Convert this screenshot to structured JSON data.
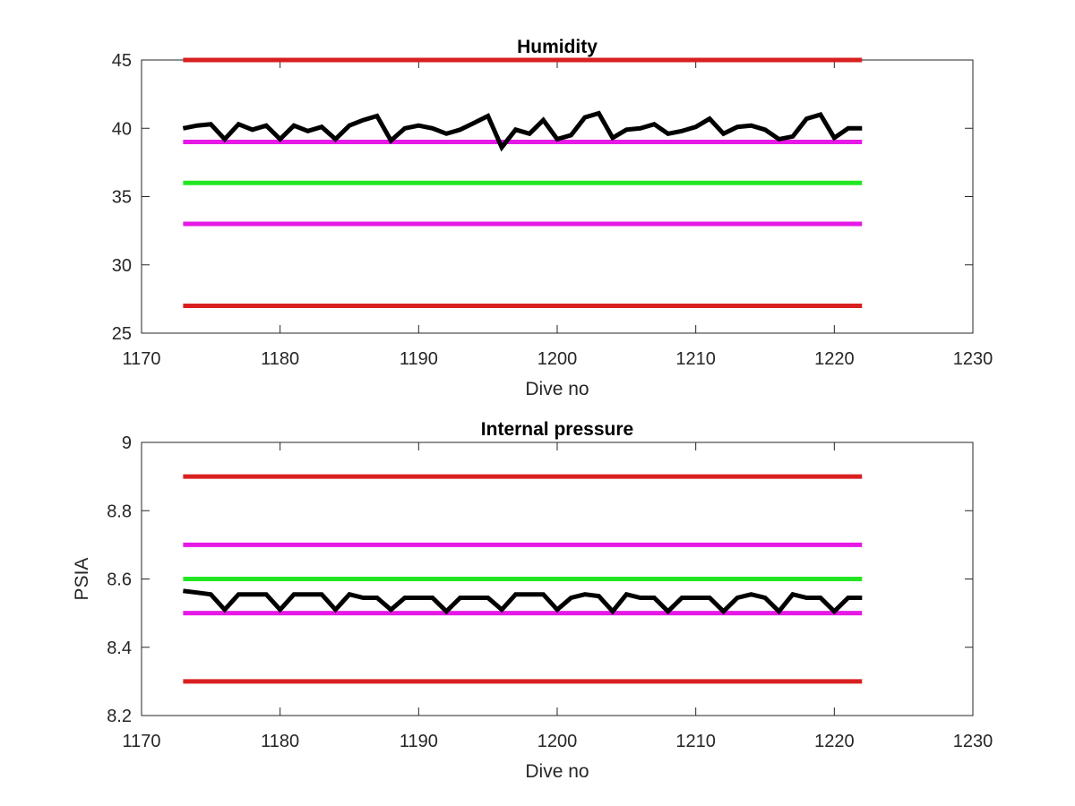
{
  "chart_data": [
    {
      "type": "line",
      "title": "Humidity",
      "xlabel": "Dive no",
      "ylabel": "",
      "xlim": [
        1170,
        1230
      ],
      "ylim": [
        25,
        45
      ],
      "xticks": [
        "1170",
        "1180",
        "1190",
        "1200",
        "1210",
        "1220",
        "1230"
      ],
      "yticks": [
        "25",
        "30",
        "35",
        "40",
        "45"
      ],
      "grid": false,
      "reference_lines": [
        {
          "y": 45,
          "x": [
            1173,
            1222
          ],
          "color": "#d91f1f"
        },
        {
          "y": 39,
          "x": [
            1173,
            1222
          ],
          "color": "#e619e6"
        },
        {
          "y": 36,
          "x": [
            1173,
            1222
          ],
          "color": "#23e623"
        },
        {
          "y": 33,
          "x": [
            1173,
            1222
          ],
          "color": "#e619e6"
        },
        {
          "y": 27,
          "x": [
            1173,
            1222
          ],
          "color": "#d91f1f"
        }
      ],
      "series": [
        {
          "color": "#000000",
          "x": [
            1173,
            1174,
            1175,
            1176,
            1177,
            1178,
            1179,
            1180,
            1181,
            1182,
            1183,
            1184,
            1185,
            1186,
            1187,
            1188,
            1189,
            1190,
            1191,
            1192,
            1193,
            1194,
            1195,
            1196,
            1197,
            1198,
            1199,
            1200,
            1201,
            1202,
            1203,
            1204,
            1205,
            1206,
            1207,
            1208,
            1209,
            1210,
            1211,
            1212,
            1213,
            1214,
            1215,
            1216,
            1217,
            1218,
            1219,
            1220,
            1221,
            1222
          ],
          "values": [
            40.0,
            40.2,
            40.3,
            39.2,
            40.3,
            39.9,
            40.2,
            39.2,
            40.2,
            39.8,
            40.1,
            39.2,
            40.2,
            40.6,
            40.9,
            39.1,
            40.0,
            40.2,
            40.0,
            39.6,
            39.9,
            40.4,
            40.9,
            38.6,
            39.9,
            39.6,
            40.6,
            39.2,
            39.5,
            40.8,
            41.1,
            39.3,
            39.9,
            40.0,
            40.3,
            39.6,
            39.8,
            40.1,
            40.7,
            39.6,
            40.1,
            40.2,
            39.9,
            39.2,
            39.4,
            40.7,
            41.0,
            39.3,
            40.0,
            40.0
          ]
        }
      ]
    },
    {
      "type": "line",
      "title": "Internal pressure",
      "xlabel": "Dive no",
      "ylabel": "PSIA",
      "xlim": [
        1170,
        1230
      ],
      "ylim": [
        8.2,
        9
      ],
      "xticks": [
        "1170",
        "1180",
        "1190",
        "1200",
        "1210",
        "1220",
        "1230"
      ],
      "yticks": [
        "8.2",
        "8.4",
        "8.6",
        "8.8",
        "9"
      ],
      "grid": false,
      "reference_lines": [
        {
          "y": 8.9,
          "x": [
            1173,
            1222
          ],
          "color": "#d91f1f"
        },
        {
          "y": 8.7,
          "x": [
            1173,
            1222
          ],
          "color": "#e619e6"
        },
        {
          "y": 8.6,
          "x": [
            1173,
            1222
          ],
          "color": "#23e623"
        },
        {
          "y": 8.5,
          "x": [
            1173,
            1222
          ],
          "color": "#e619e6"
        },
        {
          "y": 8.3,
          "x": [
            1173,
            1222
          ],
          "color": "#d91f1f"
        }
      ],
      "series": [
        {
          "color": "#000000",
          "x": [
            1173,
            1174,
            1175,
            1176,
            1177,
            1178,
            1179,
            1180,
            1181,
            1182,
            1183,
            1184,
            1185,
            1186,
            1187,
            1188,
            1189,
            1190,
            1191,
            1192,
            1193,
            1194,
            1195,
            1196,
            1197,
            1198,
            1199,
            1200,
            1201,
            1202,
            1203,
            1204,
            1205,
            1206,
            1207,
            1208,
            1209,
            1210,
            1211,
            1212,
            1213,
            1214,
            1215,
            1216,
            1217,
            1218,
            1219,
            1220,
            1221,
            1222
          ],
          "values": [
            8.565,
            8.56,
            8.555,
            8.51,
            8.555,
            8.555,
            8.555,
            8.51,
            8.555,
            8.555,
            8.555,
            8.51,
            8.555,
            8.545,
            8.545,
            8.51,
            8.545,
            8.545,
            8.545,
            8.505,
            8.545,
            8.545,
            8.545,
            8.51,
            8.555,
            8.555,
            8.555,
            8.51,
            8.545,
            8.555,
            8.55,
            8.505,
            8.555,
            8.545,
            8.545,
            8.505,
            8.545,
            8.545,
            8.545,
            8.505,
            8.545,
            8.555,
            8.545,
            8.505,
            8.555,
            8.545,
            8.545,
            8.505,
            8.545,
            8.545
          ]
        }
      ]
    }
  ]
}
